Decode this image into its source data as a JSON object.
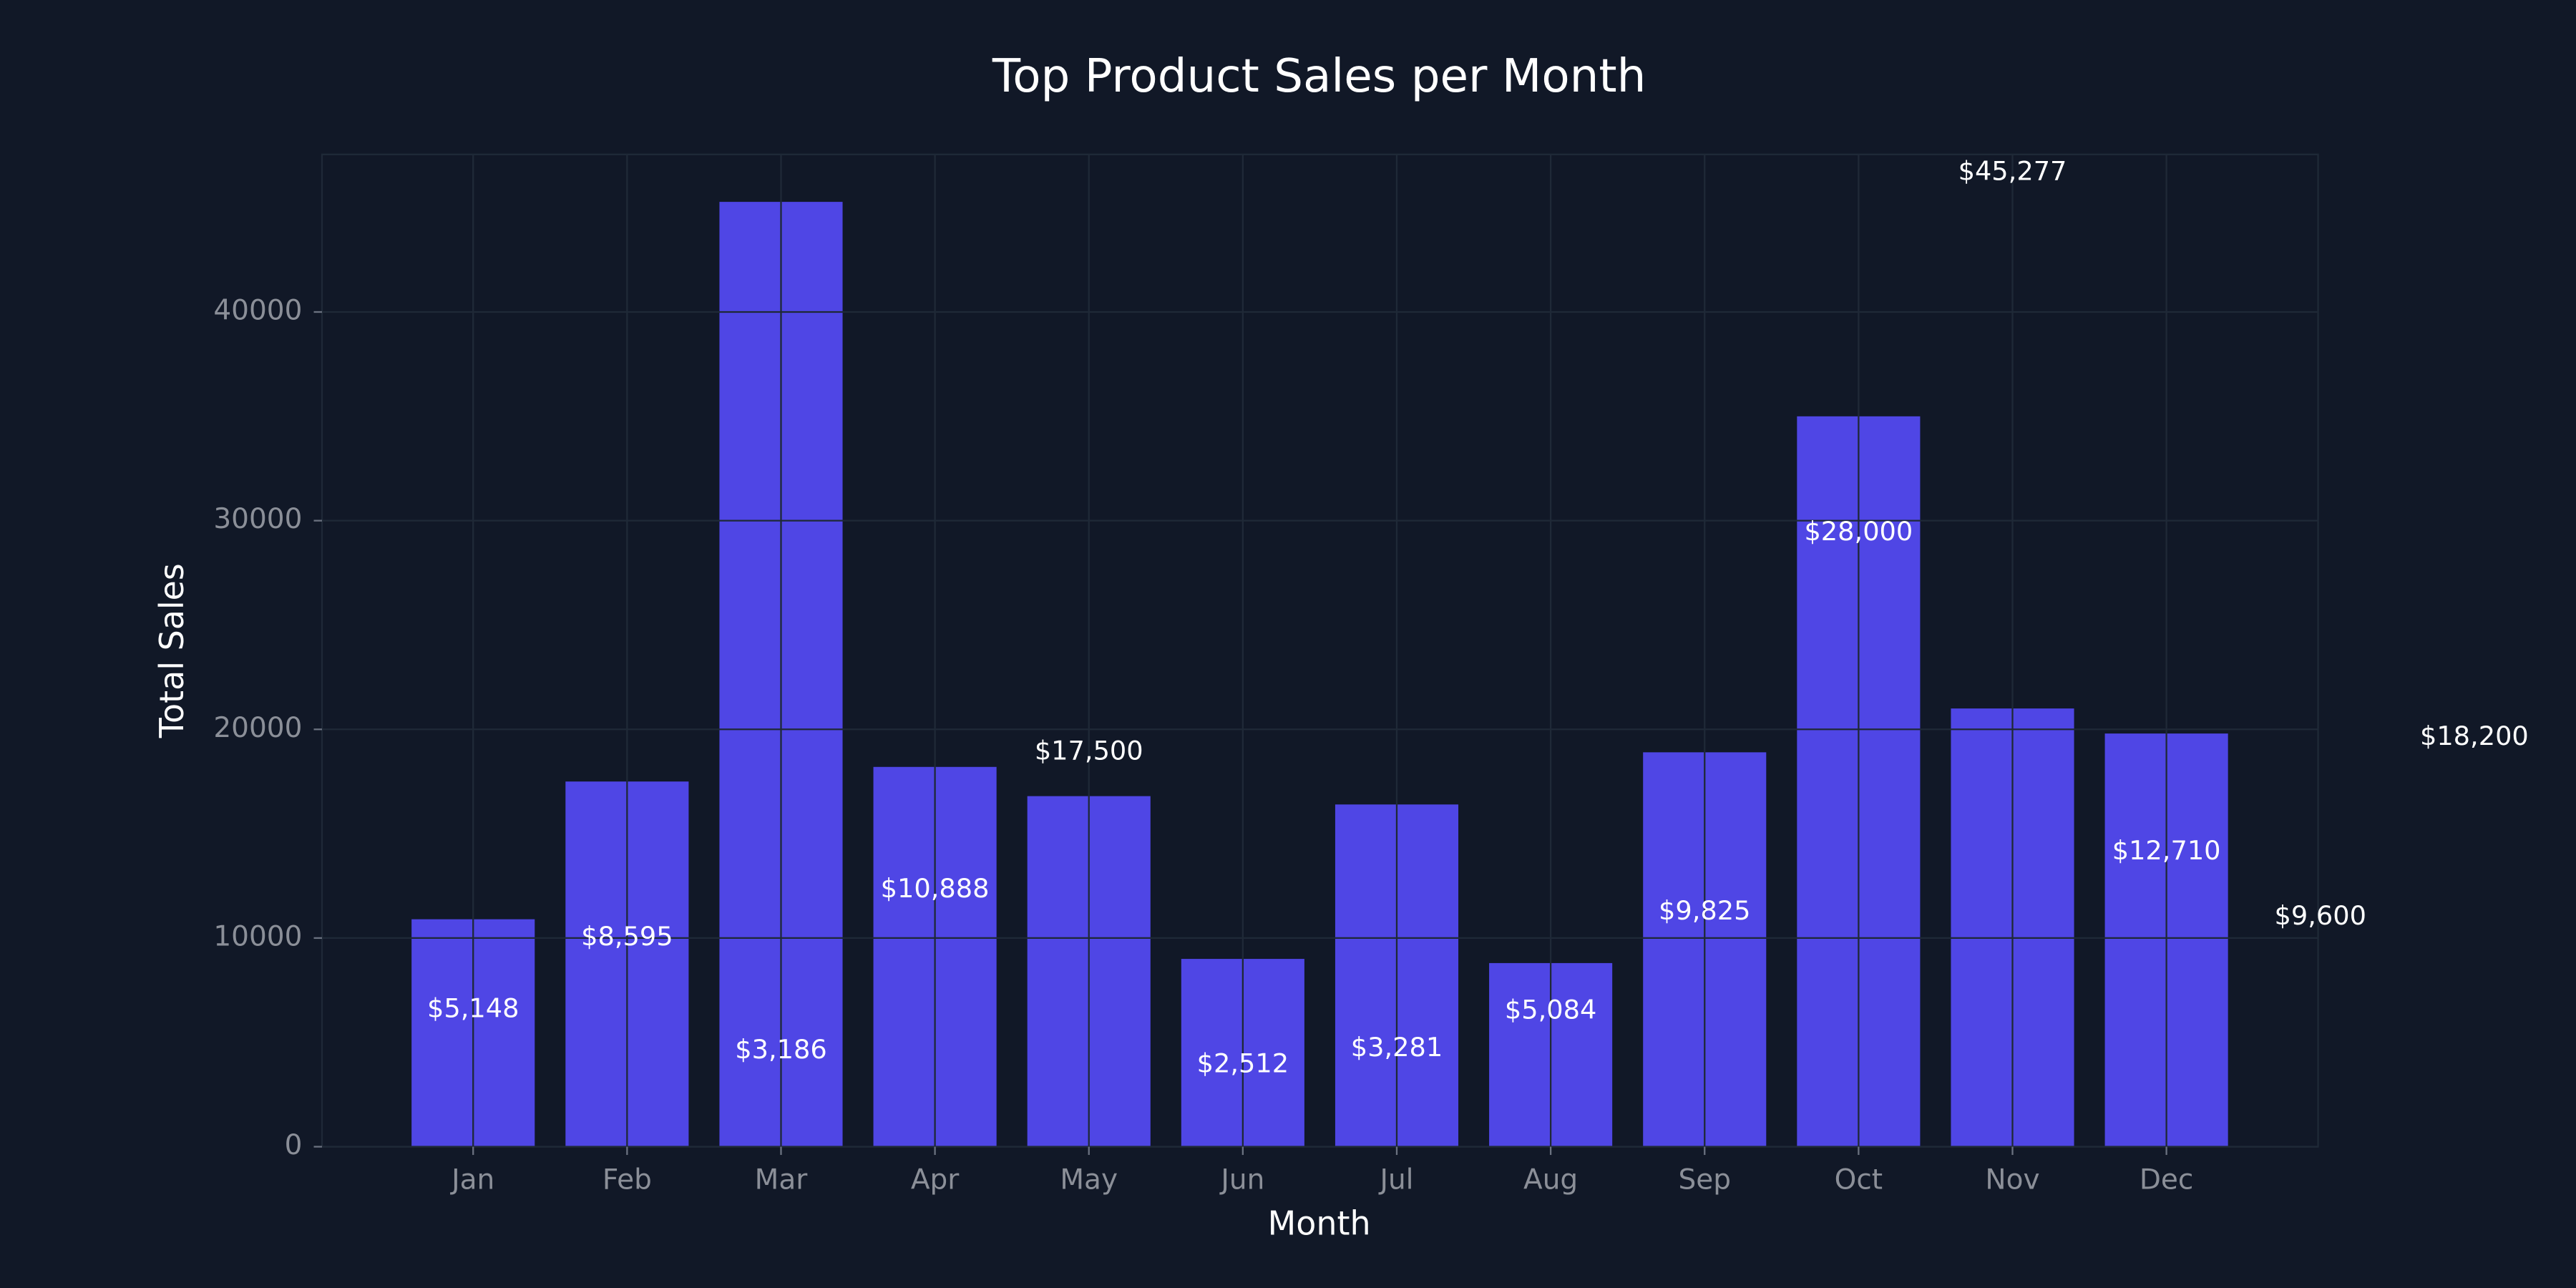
{
  "chart_data": {
    "type": "bar",
    "title": "Top Product Sales per Month",
    "x_label": "Month",
    "y_label": "Total Sales",
    "categories": [
      "Jan",
      "Feb",
      "Mar",
      "Apr",
      "May",
      "Jun",
      "Jul",
      "Aug",
      "Sep",
      "Oct",
      "Nov",
      "Dec"
    ],
    "values": [
      10900,
      17500,
      45277,
      18200,
      16800,
      9000,
      16400,
      8800,
      18900,
      35000,
      21000,
      19800
    ],
    "color": "#4f46e5",
    "ylim": [
      0,
      47550
    ],
    "yticks": [
      0,
      10000,
      20000,
      30000,
      40000
    ],
    "grid": true,
    "annotations": {
      "values": [
        5148,
        8595,
        3186,
        10888,
        17500,
        2512,
        3281,
        5084,
        9825,
        28000,
        45277,
        12710,
        9600,
        18200
      ],
      "value_labels": [
        "$5,148",
        "$8,595",
        "$3,186",
        "$10,888",
        "$17,500",
        "$2,512",
        "$3,281",
        "$5,084",
        "$9,825",
        "$28,000",
        "$45,277",
        "$12,710",
        "$9,600",
        "$18,200"
      ]
    }
  }
}
